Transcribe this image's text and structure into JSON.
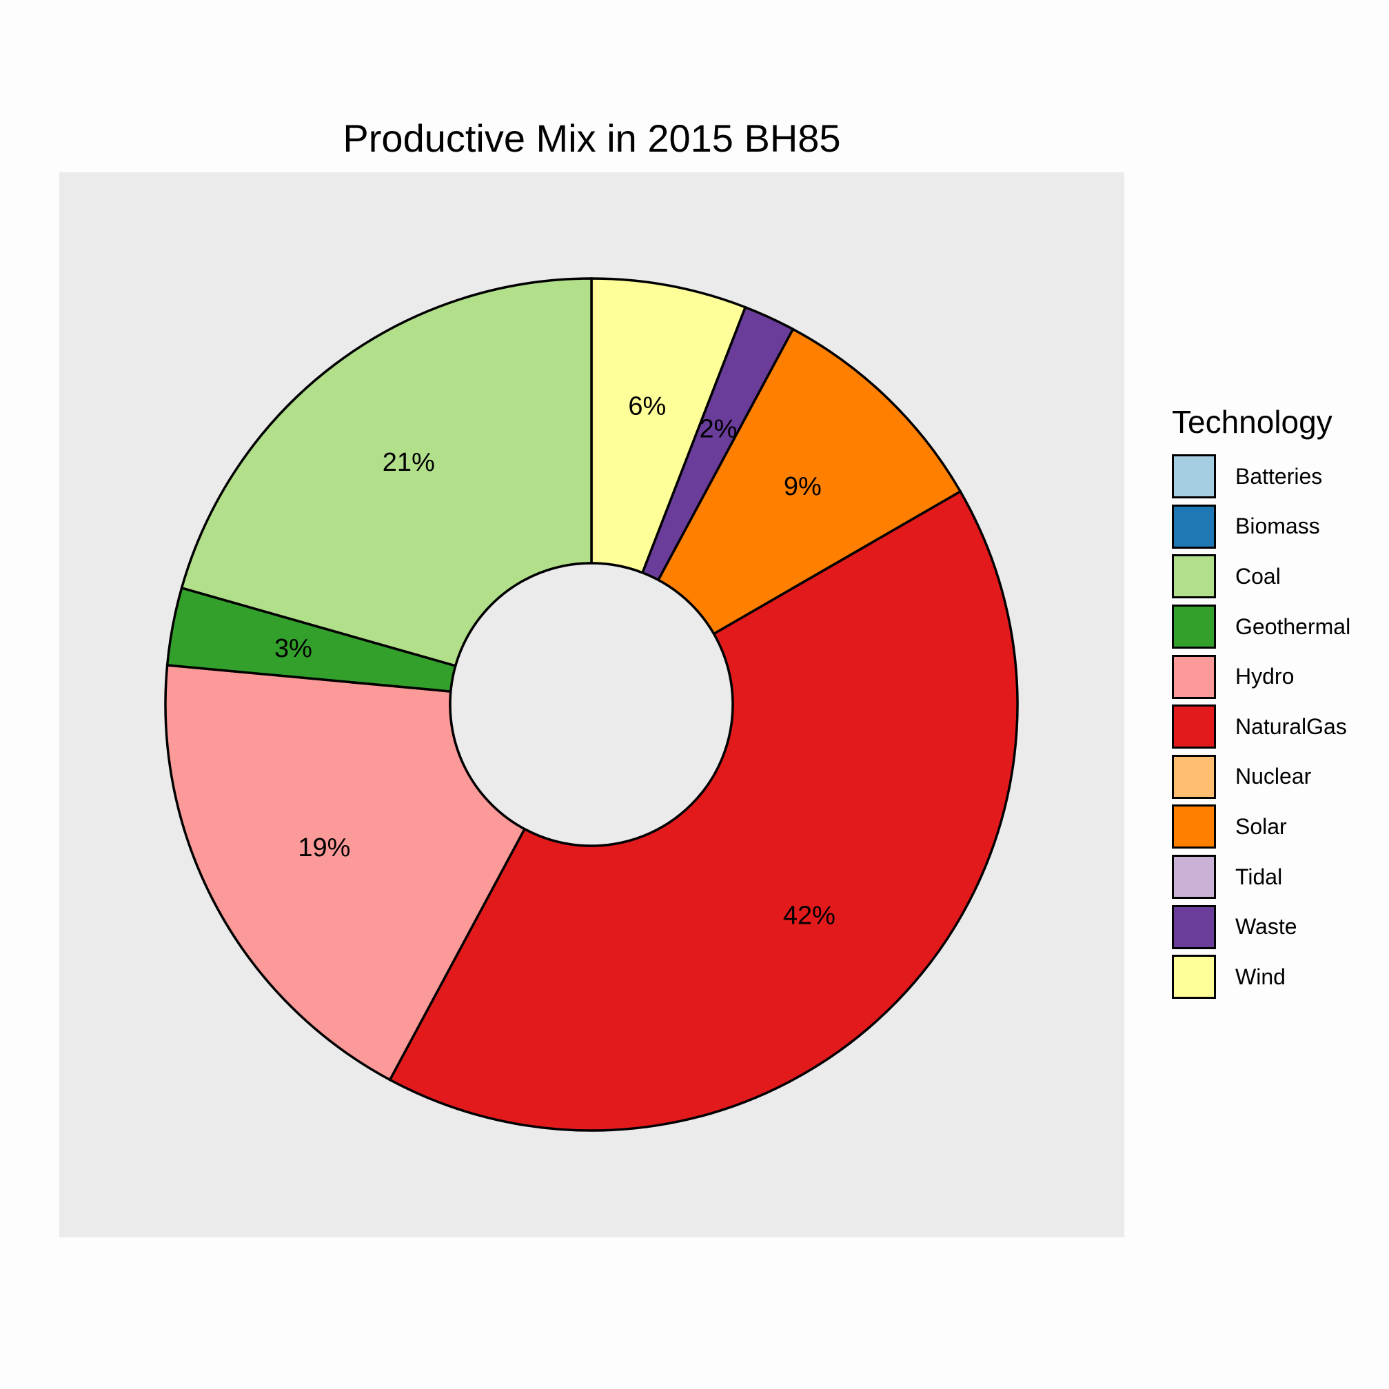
{
  "chart_data": {
    "type": "pie",
    "title": "Productive Mix in 2015 BH85",
    "legend_title": "Technology",
    "legend_position": "right",
    "legend": [
      {
        "name": "Batteries",
        "color": "#a6cee3"
      },
      {
        "name": "Biomass",
        "color": "#1f78b4"
      },
      {
        "name": "Coal",
        "color": "#b2df8a"
      },
      {
        "name": "Geothermal",
        "color": "#33a02c"
      },
      {
        "name": "Hydro",
        "color": "#fb9a99"
      },
      {
        "name": "NaturalGas",
        "color": "#e31a1c"
      },
      {
        "name": "Nuclear",
        "color": "#fdbf6f"
      },
      {
        "name": "Solar",
        "color": "#ff7f00"
      },
      {
        "name": "Tidal",
        "color": "#cab2d6"
      },
      {
        "name": "Waste",
        "color": "#6a3d9a"
      },
      {
        "name": "Wind",
        "color": "#ffff99"
      }
    ],
    "slices": [
      {
        "name": "Wind",
        "value": 6,
        "label": "6%",
        "color": "#ffff99"
      },
      {
        "name": "Waste",
        "value": 2,
        "label": "2%",
        "color": "#6a3d9a"
      },
      {
        "name": "Solar",
        "value": 9,
        "label": "9%",
        "color": "#ff7f00"
      },
      {
        "name": "NaturalGas",
        "value": 42,
        "label": "42%",
        "color": "#e31a1c"
      },
      {
        "name": "Hydro",
        "value": 19,
        "label": "19%",
        "color": "#fb9a99"
      },
      {
        "name": "Geothermal",
        "value": 3,
        "label": "3%",
        "color": "#33a02c"
      },
      {
        "name": "Coal",
        "value": 21,
        "label": "21%",
        "color": "#b2df8a"
      }
    ],
    "panel_color": "#ebebeb"
  }
}
